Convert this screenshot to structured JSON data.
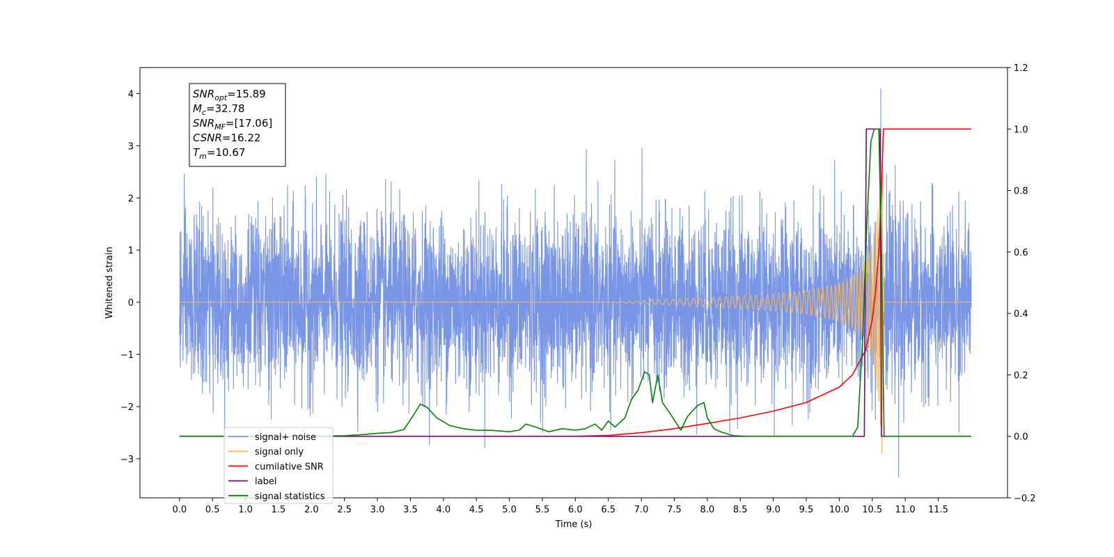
{
  "chart_data": {
    "type": "line",
    "xlabel": "Time (s)",
    "ylabel": "Whitened strain",
    "xlim": [
      -0.6,
      12.55
    ],
    "ylim": [
      -3.75,
      4.5
    ],
    "y2lim": [
      -0.2,
      1.2
    ],
    "x_ticks": [
      0.0,
      0.5,
      1.0,
      1.5,
      2.0,
      2.5,
      3.0,
      3.5,
      4.0,
      4.5,
      5.0,
      5.5,
      6.0,
      6.5,
      7.0,
      7.5,
      8.0,
      8.5,
      9.0,
      9.5,
      10.0,
      10.5,
      11.0,
      11.5
    ],
    "x_tick_labels": [
      "0.0",
      "0.5",
      "1.0",
      "1.5",
      "2.0",
      "2.5",
      "3.0",
      "3.5",
      "4.0",
      "4.5",
      "5.0",
      "5.5",
      "6.0",
      "6.5",
      "7.0",
      "7.5",
      "8.0",
      "8.5",
      "9.0",
      "9.5",
      "10.0",
      "10.5",
      "11.0",
      "11.5"
    ],
    "y_ticks": [
      -3,
      -2,
      -1,
      0,
      1,
      2,
      3,
      4
    ],
    "y_tick_labels": [
      "−3",
      "−2",
      "−1",
      "0",
      "1",
      "2",
      "3",
      "4"
    ],
    "y2_ticks": [
      -0.2,
      0.0,
      0.2,
      0.4,
      0.6,
      0.8,
      1.0,
      1.2
    ],
    "y2_tick_labels": [
      "−0.2",
      "0.0",
      "0.2",
      "0.4",
      "0.6",
      "0.8",
      "1.0",
      "1.2"
    ],
    "grid": false,
    "legend_position": "lower-left",
    "annotation": {
      "position": "top-left",
      "lines": [
        {
          "base": "SNR",
          "sub": "opt",
          "value": "=15.89"
        },
        {
          "base": "M",
          "sub": "c",
          "value": "=32.78"
        },
        {
          "base": "SNR",
          "sub": "MF",
          "value": "=[17.06]"
        },
        {
          "base": "CSNR",
          "sub": "",
          "value": "=16.22"
        },
        {
          "base": "T",
          "sub": "m",
          "value": "=10.67"
        }
      ]
    },
    "series": [
      {
        "name": "signal+ noise",
        "axis": "left",
        "color": "#7895e6",
        "x_range": [
          0,
          12
        ],
        "amplitude_typical": 1.9,
        "max": 4.1,
        "max_at": 10.63,
        "min": -3.35,
        "min_at": 10.9
      },
      {
        "name": "signal only",
        "axis": "left",
        "color": "#f4b865",
        "x_range": [
          0,
          12
        ],
        "envelope": [
          [
            0,
            0
          ],
          [
            6.5,
            0
          ],
          [
            7.0,
            0.03
          ],
          [
            7.5,
            0.06
          ],
          [
            8.0,
            0.09
          ],
          [
            8.5,
            0.12
          ],
          [
            9.0,
            0.17
          ],
          [
            9.5,
            0.23
          ],
          [
            10.0,
            0.36
          ],
          [
            10.2,
            0.5
          ],
          [
            10.4,
            0.8
          ],
          [
            10.5,
            1.15
          ],
          [
            10.6,
            1.9
          ],
          [
            10.65,
            3.0
          ],
          [
            10.68,
            0
          ],
          [
            12,
            0
          ]
        ]
      },
      {
        "name": "cumilative SNR",
        "axis": "right",
        "color": "#ff0000",
        "points": [
          [
            0,
            0
          ],
          [
            6.0,
            0
          ],
          [
            6.5,
            0.003
          ],
          [
            7.0,
            0.012
          ],
          [
            7.5,
            0.025
          ],
          [
            8.0,
            0.042
          ],
          [
            8.5,
            0.06
          ],
          [
            9.0,
            0.082
          ],
          [
            9.5,
            0.11
          ],
          [
            10.0,
            0.16
          ],
          [
            10.2,
            0.2
          ],
          [
            10.4,
            0.28
          ],
          [
            10.5,
            0.38
          ],
          [
            10.55,
            0.47
          ],
          [
            10.6,
            0.6
          ],
          [
            10.64,
            0.8
          ],
          [
            10.67,
            1.0
          ],
          [
            12,
            1.0
          ]
        ]
      },
      {
        "name": "label",
        "axis": "right",
        "color": "#800080",
        "points": [
          [
            0,
            0
          ],
          [
            10.38,
            0
          ],
          [
            10.41,
            1.0
          ],
          [
            10.62,
            1.0
          ],
          [
            10.64,
            0
          ],
          [
            12,
            0
          ]
        ]
      },
      {
        "name": "signal statistics",
        "axis": "right",
        "color": "#008000",
        "points": [
          [
            0,
            0
          ],
          [
            2.0,
            0
          ],
          [
            2.5,
            0.002
          ],
          [
            2.8,
            0.006
          ],
          [
            3.0,
            0.01
          ],
          [
            3.2,
            0.012
          ],
          [
            3.4,
            0.022
          ],
          [
            3.55,
            0.07
          ],
          [
            3.65,
            0.105
          ],
          [
            3.75,
            0.095
          ],
          [
            3.9,
            0.06
          ],
          [
            4.1,
            0.035
          ],
          [
            4.3,
            0.025
          ],
          [
            4.5,
            0.02
          ],
          [
            4.7,
            0.02
          ],
          [
            5.0,
            0.015
          ],
          [
            5.15,
            0.02
          ],
          [
            5.25,
            0.04
          ],
          [
            5.4,
            0.03
          ],
          [
            5.6,
            0.015
          ],
          [
            5.8,
            0.025
          ],
          [
            6.0,
            0.02
          ],
          [
            6.15,
            0.025
          ],
          [
            6.3,
            0.04
          ],
          [
            6.4,
            0.02
          ],
          [
            6.5,
            0.05
          ],
          [
            6.6,
            0.03
          ],
          [
            6.75,
            0.06
          ],
          [
            6.85,
            0.12
          ],
          [
            6.95,
            0.15
          ],
          [
            7.05,
            0.21
          ],
          [
            7.12,
            0.2
          ],
          [
            7.17,
            0.11
          ],
          [
            7.25,
            0.2
          ],
          [
            7.32,
            0.11
          ],
          [
            7.45,
            0.07
          ],
          [
            7.6,
            0.02
          ],
          [
            7.7,
            0.065
          ],
          [
            7.85,
            0.1
          ],
          [
            7.95,
            0.11
          ],
          [
            8.0,
            0.06
          ],
          [
            8.1,
            0.025
          ],
          [
            8.2,
            0.015
          ],
          [
            8.4,
            0.002
          ],
          [
            8.6,
            0
          ],
          [
            10.2,
            0
          ],
          [
            10.28,
            0.03
          ],
          [
            10.35,
            0.3
          ],
          [
            10.42,
            0.7
          ],
          [
            10.48,
            0.96
          ],
          [
            10.53,
            1.0
          ],
          [
            10.6,
            1.0
          ],
          [
            10.64,
            0.6
          ],
          [
            10.68,
            0
          ],
          [
            12,
            0
          ]
        ]
      }
    ]
  }
}
